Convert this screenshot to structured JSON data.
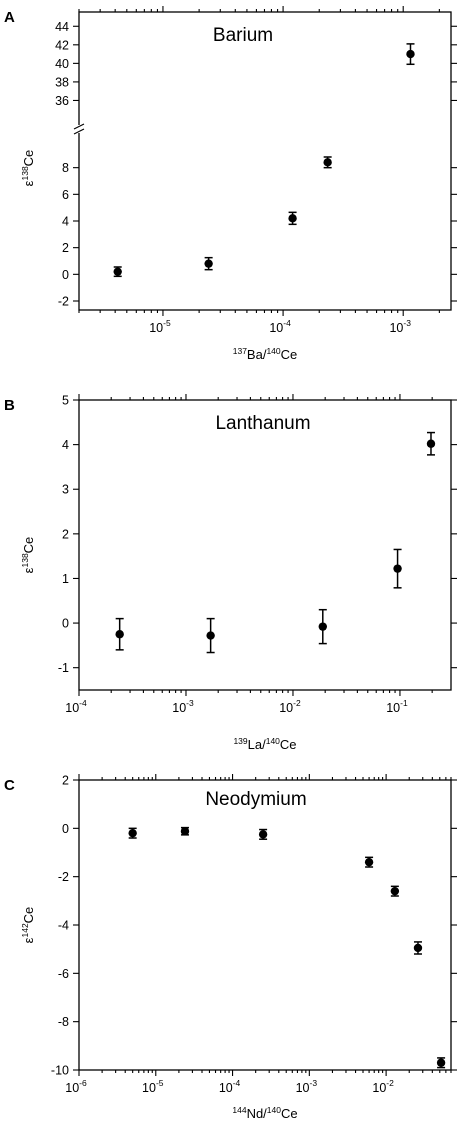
{
  "chart_data": [
    {
      "type": "scatter",
      "panel_label": "A",
      "title": "Barium",
      "xlabel": {
        "sup": "137",
        "base": "Ba/",
        "sup2": "140",
        "base2": "Ce"
      },
      "ylabel": {
        "prefix": "ε",
        "sup": "138",
        "base": "Ce"
      },
      "xscale": "log",
      "xlim": [
        2e-06,
        0.0025
      ],
      "x_ticks": [
        {
          "mant": "10",
          "exp": "-5",
          "v": 1e-05
        },
        {
          "mant": "10",
          "exp": "-4",
          "v": 0.0001
        },
        {
          "mant": "10",
          "exp": "-3",
          "v": 0.001
        }
      ],
      "y_broken": true,
      "y_lower": {
        "range": [
          -2,
          10
        ],
        "ticks": [
          "-2",
          "0",
          "2",
          "4",
          "6",
          "8"
        ]
      },
      "y_upper": {
        "range": [
          34,
          45
        ],
        "ticks": [
          "36",
          "38",
          "40",
          "42",
          "44"
        ]
      },
      "points": [
        {
          "x": 4.2e-06,
          "y": 0.2,
          "err": 0.35
        },
        {
          "x": 2.4e-05,
          "y": 0.8,
          "err": 0.45
        },
        {
          "x": 0.00012,
          "y": 4.2,
          "err": 0.45
        },
        {
          "x": 0.000235,
          "y": 8.4,
          "err": 0.4
        },
        {
          "x": 0.00115,
          "y": 41.0,
          "err": 1.1
        }
      ]
    },
    {
      "type": "scatter",
      "panel_label": "B",
      "title": "Lanthanum",
      "xlabel": {
        "sup": "139",
        "base": "La/",
        "sup2": "140",
        "base2": "Ce"
      },
      "ylabel": {
        "prefix": "ε",
        "sup": "138",
        "base": "Ce"
      },
      "xscale": "log",
      "xlim": [
        0.0001,
        0.3
      ],
      "x_ticks": [
        {
          "mant": "10",
          "exp": "-4",
          "v": 0.0001
        },
        {
          "mant": "10",
          "exp": "-3",
          "v": 0.001
        },
        {
          "mant": "10",
          "exp": "-2",
          "v": 0.01
        },
        {
          "mant": "10",
          "exp": "-1",
          "v": 0.1
        }
      ],
      "ylim": [
        -1.5,
        5
      ],
      "y_ticks": [
        "-1",
        "0",
        "1",
        "2",
        "3",
        "4",
        "5"
      ],
      "points": [
        {
          "x": 0.00024,
          "y": -0.25,
          "err": 0.35
        },
        {
          "x": 0.0017,
          "y": -0.28,
          "err": 0.38
        },
        {
          "x": 0.019,
          "y": -0.08,
          "err": 0.38
        },
        {
          "x": 0.095,
          "y": 1.22,
          "err": 0.43
        },
        {
          "x": 0.195,
          "y": 4.02,
          "err": 0.25
        }
      ]
    },
    {
      "type": "scatter",
      "panel_label": "C",
      "title": "Neodymium",
      "xlabel": {
        "sup": "144",
        "base": "Nd/",
        "sup2": "140",
        "base2": "Ce"
      },
      "ylabel": {
        "prefix": "ε",
        "sup": "142",
        "base": "Ce"
      },
      "xscale": "log",
      "xlim": [
        1e-06,
        0.07
      ],
      "x_ticks": [
        {
          "mant": "10",
          "exp": "-6",
          "v": 1e-06
        },
        {
          "mant": "10",
          "exp": "-5",
          "v": 1e-05
        },
        {
          "mant": "10",
          "exp": "-4",
          "v": 0.0001
        },
        {
          "mant": "10",
          "exp": "-3",
          "v": 0.001
        },
        {
          "mant": "10",
          "exp": "-2",
          "v": 0.01
        }
      ],
      "ylim": [
        -10,
        2
      ],
      "y_ticks": [
        "-10",
        "-8",
        "-6",
        "-4",
        "-2",
        "0",
        "2"
      ],
      "points": [
        {
          "x": 5e-06,
          "y": -0.2,
          "err": 0.2
        },
        {
          "x": 2.4e-05,
          "y": -0.12,
          "err": 0.15
        },
        {
          "x": 0.00025,
          "y": -0.25,
          "err": 0.2
        },
        {
          "x": 0.006,
          "y": -1.4,
          "err": 0.2
        },
        {
          "x": 0.013,
          "y": -2.6,
          "err": 0.2
        },
        {
          "x": 0.026,
          "y": -4.95,
          "err": 0.25
        },
        {
          "x": 0.052,
          "y": -9.7,
          "err": 0.2
        }
      ]
    }
  ]
}
